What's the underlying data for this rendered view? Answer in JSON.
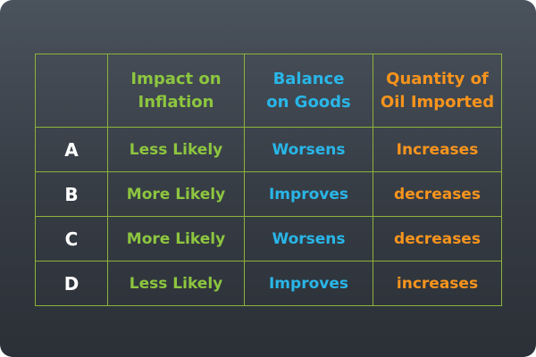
{
  "table": {
    "headers": [
      {
        "line1": "Impact on",
        "line2": "Inflation"
      },
      {
        "line1": "Balance",
        "line2": "on Goods"
      },
      {
        "line1": "Quantity of",
        "line2": "Oil Imported"
      }
    ],
    "rows": [
      {
        "label": "A",
        "inflation": "Less Likely",
        "balance": "Worsens",
        "oil": "Increases"
      },
      {
        "label": "B",
        "inflation": "More Likely",
        "balance": "Improves",
        "oil": "decreases"
      },
      {
        "label": "C",
        "inflation": "More Likely",
        "balance": "Worsens",
        "oil": "decreases"
      },
      {
        "label": "D",
        "inflation": "Less Likely",
        "balance": "Improves",
        "oil": "increases"
      }
    ]
  },
  "colors": {
    "inflation": "#8dc63f",
    "balance": "#29b6e8",
    "oil": "#f7941d",
    "grid": "#8db33a"
  }
}
